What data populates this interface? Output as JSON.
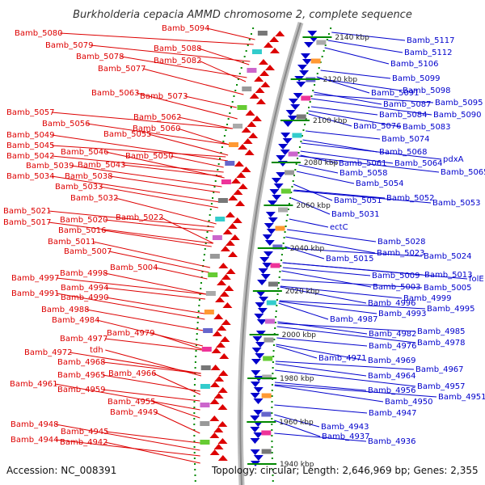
{
  "title": "Burkholderia cepacia AMMD chromosome 2, complete sequence",
  "accession": "Accession: NC_008391",
  "topology": "Topology: circular; Length: 2,646,969 bp; Genes: 2,355",
  "colors": {
    "forward": "#dd0000",
    "reverse": "#0000cc",
    "backbone": "#a0a0a0",
    "tick": "#008800"
  },
  "kbp_ticks": [
    "2140 kbp",
    "2120 kbp",
    "2100 kbp",
    "2080 kbp",
    "2060 kbp",
    "2040 kbp",
    "2020 kbp",
    "2000 kbp",
    "1980 kbp",
    "1960 kbp",
    "1940 kbp"
  ],
  "left_labels": [
    "Bamb_5080",
    "Bamb_5079",
    "Bamb_5078",
    "Bamb_5077",
    "Bamb_5094",
    "Bamb_5088",
    "Bamb_5082",
    "Bamb_5063",
    "Bamb_5073",
    "Bamb_5057",
    "Bamb_5056",
    "Bamb_5049",
    "Bamb_5045",
    "Bamb_5042",
    "Bamb_5039",
    "Bamb_5034",
    "Bamb_5062",
    "Bamb_5060",
    "Bamb_5055",
    "Bamb_5046",
    "Bamb_5043",
    "Bamb_5038",
    "Bamb_5033",
    "Bamb_5032",
    "Bamb_5050",
    "Bamb_5021",
    "Bamb_5017",
    "Bamb_5011",
    "Bamb_5020",
    "Bamb_5016",
    "Bamb_5007",
    "Bamb_5022",
    "Bamb_5004",
    "Bamb_4997",
    "Bamb_4998",
    "Bamb_4991",
    "Bamb_4994",
    "Bamb_4990",
    "Bamb_4988",
    "Bamb_4984",
    "Bamb_4977",
    "Bamb_4979",
    "Bamb_4972",
    "tdh",
    "Bamb_4968",
    "Bamb_4965",
    "Bamb_4966",
    "Bamb_4961",
    "Bamb_4959",
    "Bamb_4955",
    "Bamb_4949",
    "Bamb_4948",
    "Bamb_4945",
    "Bamb_4944",
    "Bamb_4942"
  ],
  "right_labels": [
    "Bamb_5117",
    "Bamb_5112",
    "Bamb_5106",
    "Bamb_5099",
    "Bamb_5098",
    "Bamb_5091",
    "Bamb_5095",
    "Bamb_5087",
    "Bamb_5090",
    "Bamb_5084",
    "Bamb_5076",
    "Bamb_5083",
    "Bamb_5074",
    "Bamb_5068",
    "pdxA",
    "Bamb_5061",
    "Bamb_5064",
    "Bamb_5065",
    "Bamb_5058",
    "Bamb_5054",
    "Bamb_5051",
    "Bamb_5052",
    "Bamb_5053",
    "Bamb_5031",
    "ectC",
    "Bamb_5028",
    "Bamb_5023",
    "Bamb_5024",
    "Bamb_5015",
    "folE",
    "Bamb_5009",
    "Bamb_5013",
    "Bamb_5003",
    "Bamb_5005",
    "Bamb_4999",
    "Bamb_4996",
    "Bamb_4995",
    "Bamb_4993",
    "Bamb_4987",
    "Bamb_4985",
    "Bamb_4982",
    "Bamb_4978",
    "Bamb_4976",
    "Bamb_4971",
    "Bamb_4969",
    "Bamb_4967",
    "Bamb_4964",
    "Bamb_4957",
    "Bamb_4956",
    "Bamb_4951",
    "Bamb_4950",
    "Bamb_4947",
    "Bamb_4943",
    "Bamb_4937",
    "Bamb_4936"
  ]
}
